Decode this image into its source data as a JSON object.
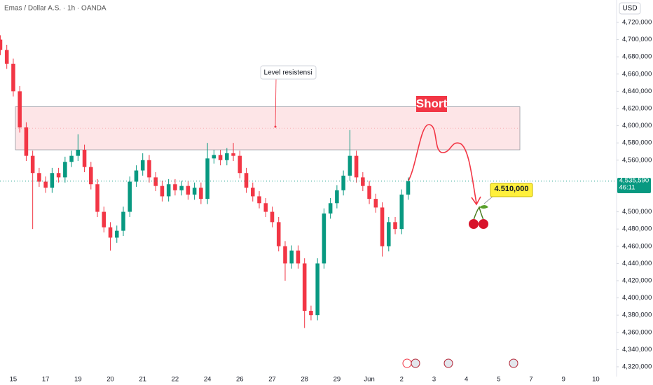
{
  "chart_data": {
    "type": "candlestick",
    "title": "Emas / Dollar A.S. · 1h · OANDA",
    "currency": "USD",
    "xlim": [
      -0.41,
      18.64
    ],
    "ylim": [
      4308600,
      4746000
    ],
    "xticks": [
      {
        "value": 0,
        "label": "15"
      },
      {
        "value": 1,
        "label": "17"
      },
      {
        "value": 2,
        "label": "19"
      },
      {
        "value": 3,
        "label": "20"
      },
      {
        "value": 4,
        "label": "21"
      },
      {
        "value": 5,
        "label": "22"
      },
      {
        "value": 6,
        "label": "24"
      },
      {
        "value": 7,
        "label": "26"
      },
      {
        "value": 8,
        "label": "27"
      },
      {
        "value": 9,
        "label": "28"
      },
      {
        "value": 10,
        "label": "29"
      },
      {
        "value": 11,
        "label": "Jun"
      },
      {
        "value": 12,
        "label": "2"
      },
      {
        "value": 13,
        "label": "3"
      },
      {
        "value": 14,
        "label": "4"
      },
      {
        "value": 15,
        "label": "5"
      },
      {
        "value": 16,
        "label": "7"
      },
      {
        "value": 17,
        "label": "9"
      },
      {
        "value": 18,
        "label": "10"
      }
    ],
    "yticks": [
      {
        "value": 4720000,
        "label": "4,720,000"
      },
      {
        "value": 4700000,
        "label": "4,700,000"
      },
      {
        "value": 4680000,
        "label": "4,680,000"
      },
      {
        "value": 4660000,
        "label": "4,660,000"
      },
      {
        "value": 4640000,
        "label": "4,640,000"
      },
      {
        "value": 4620000,
        "label": "4,620,000"
      },
      {
        "value": 4600000,
        "label": "4,600,000"
      },
      {
        "value": 4580000,
        "label": "4,580,000"
      },
      {
        "value": 4560000,
        "label": "4,560,000"
      },
      {
        "value": 4500000,
        "label": "4,500,000"
      },
      {
        "value": 4480000,
        "label": "4,480,000"
      },
      {
        "value": 4460000,
        "label": "4,460,000"
      },
      {
        "value": 4440000,
        "label": "4,440,000"
      },
      {
        "value": 4420000,
        "label": "4,420,000"
      },
      {
        "value": 4400000,
        "label": "4,400,000"
      },
      {
        "value": 4380000,
        "label": "4,380,000"
      },
      {
        "value": 4360000,
        "label": "4,360,000"
      },
      {
        "value": 4340000,
        "label": "4,340,000"
      },
      {
        "value": 4320000,
        "label": "4,320,000"
      }
    ],
    "up_color": "#089981",
    "down_color": "#f23645",
    "x": [
      -0.4,
      -0.2,
      0,
      0.2,
      0.4,
      0.6,
      0.8,
      1.0,
      1.2,
      1.4,
      1.6,
      1.8,
      2.0,
      2.2,
      2.4,
      2.6,
      2.8,
      3.0,
      3.2,
      3.4,
      3.6,
      3.8,
      4.0,
      4.2,
      4.4,
      4.6,
      4.8,
      5.0,
      5.2,
      5.4,
      5.6,
      5.8,
      6.0,
      6.2,
      6.4,
      6.6,
      6.8,
      7.0,
      7.2,
      7.4,
      7.6,
      7.8,
      8.0,
      8.2,
      8.4,
      8.6,
      8.8,
      9.0,
      9.2,
      9.4,
      9.6,
      9.8,
      10.0,
      10.2,
      10.4,
      10.6,
      10.8,
      11.0,
      11.2,
      11.4,
      11.6,
      11.8,
      12.0,
      12.2
    ],
    "open": [
      4700000,
      4688000,
      4672000,
      4640000,
      4598000,
      4565000,
      4545000,
      4535000,
      4528000,
      4545000,
      4540000,
      4558000,
      4565000,
      4572000,
      4552000,
      4532000,
      4500000,
      4482000,
      4470000,
      4478000,
      4500000,
      4535000,
      4548000,
      4560000,
      4540000,
      4530000,
      4518000,
      4532000,
      4525000,
      4530000,
      4520000,
      4528000,
      4515000,
      4562000,
      4566000,
      4560000,
      4568000,
      4565000,
      4545000,
      4528000,
      4518000,
      4510000,
      4500000,
      4488000,
      4460000,
      4440000,
      4455000,
      4440000,
      4385000,
      4380000,
      4440000,
      4498000,
      4510000,
      4525000,
      4542000,
      4565000,
      4540000,
      4530000,
      4515000,
      4505000,
      4460000,
      4488000,
      4480000,
      4520000
    ],
    "high": [
      4705000,
      4694000,
      4678000,
      4646000,
      4604000,
      4571000,
      4551000,
      4541000,
      4551000,
      4551000,
      4564000,
      4571000,
      4590000,
      4578000,
      4558000,
      4538000,
      4506000,
      4488000,
      4484000,
      4506000,
      4541000,
      4554000,
      4568000,
      4566000,
      4546000,
      4536000,
      4538000,
      4538000,
      4536000,
      4536000,
      4534000,
      4534000,
      4580000,
      4572000,
      4572000,
      4574000,
      4580000,
      4571000,
      4551000,
      4534000,
      4524000,
      4516000,
      4506000,
      4494000,
      4466000,
      4461000,
      4461000,
      4446000,
      4391000,
      4446000,
      4504000,
      4516000,
      4531000,
      4548000,
      4595000,
      4571000,
      4546000,
      4536000,
      4521000,
      4511000,
      4494000,
      4494000,
      4526000,
      4540000
    ],
    "low": [
      4682000,
      4666000,
      4634000,
      4592000,
      4559000,
      4480000,
      4529000,
      4522000,
      4522000,
      4534000,
      4534000,
      4552000,
      4559000,
      4546000,
      4526000,
      4494000,
      4476000,
      4455000,
      4464000,
      4472000,
      4494000,
      4529000,
      4542000,
      4534000,
      4524000,
      4512000,
      4512000,
      4519000,
      4519000,
      4514000,
      4514000,
      4509000,
      4509000,
      4556000,
      4554000,
      4554000,
      4559000,
      4539000,
      4522000,
      4512000,
      4504000,
      4494000,
      4482000,
      4454000,
      4420000,
      4434000,
      4434000,
      4365000,
      4374000,
      4374000,
      4434000,
      4492000,
      4504000,
      4519000,
      4536000,
      4534000,
      4524000,
      4509000,
      4499000,
      4448000,
      4454000,
      4474000,
      4474000,
      4514000
    ],
    "close": [
      4688000,
      4672000,
      4640000,
      4598000,
      4565000,
      4545000,
      4535000,
      4528000,
      4545000,
      4540000,
      4558000,
      4565000,
      4572000,
      4552000,
      4532000,
      4500000,
      4482000,
      4470000,
      4478000,
      4500000,
      4535000,
      4548000,
      4560000,
      4540000,
      4530000,
      4518000,
      4532000,
      4525000,
      4530000,
      4520000,
      4528000,
      4515000,
      4562000,
      4566000,
      4560000,
      4568000,
      4565000,
      4545000,
      4528000,
      4518000,
      4510000,
      4500000,
      4488000,
      4460000,
      4440000,
      4455000,
      4440000,
      4385000,
      4380000,
      4440000,
      4498000,
      4510000,
      4525000,
      4542000,
      4565000,
      4540000,
      4530000,
      4515000,
      4505000,
      4460000,
      4488000,
      4480000,
      4520000,
      4535590
    ],
    "resistance_zone": {
      "label": "Level resistensi",
      "low": 4572000,
      "high": 4622000,
      "color": "#f23645"
    },
    "last_price": {
      "value": 4535590,
      "label": "4,535,590",
      "countdown": "46:11"
    },
    "signal": "Short",
    "target": {
      "value": 4510000,
      "label": "4.510,000"
    }
  }
}
